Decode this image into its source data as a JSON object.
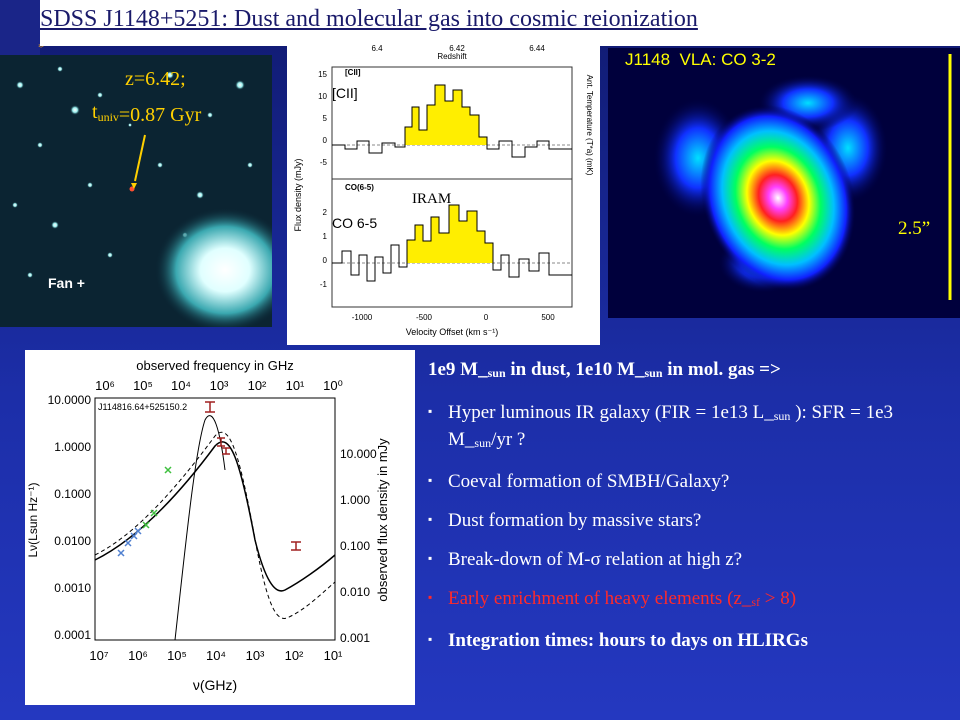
{
  "title": "SDSS J1148+5251: Dust and molecular gas into cosmic reionization",
  "optical_image": {
    "redshift": "z=6.42;",
    "age": [
      "t",
      {
        "sub": "univ"
      },
      "=0.87 Gyr"
    ],
    "credit": "Fan +"
  },
  "spectra": {
    "top_axis_label": "Redshift",
    "top_ticks": [
      "6.4",
      "6.42",
      "6.44"
    ],
    "top_tag": "[CII]",
    "top_label": "[CII]",
    "top_y_ticks": [
      "15",
      "10",
      "5",
      "0",
      "-5"
    ],
    "bottom_tag": "CO(6-5)",
    "telescope": "IRAM",
    "bottom_label": "CO 6-5",
    "bottom_y_ticks": [
      "2",
      "1",
      "0",
      "-1"
    ],
    "y_label": "Flux density (mJy)",
    "right_label": "Ant. Temperature (T*a) (mK)",
    "x_ticks": [
      "-1000",
      "-500",
      "0",
      "500"
    ],
    "x_label": "Velocity Offset (km s⁻¹)"
  },
  "co_map": {
    "label": "J1148  VLA: CO 3-2",
    "scale": "2.5”"
  },
  "sed": {
    "top_axis_label": "observed frequency in GHz",
    "top_ticks": [
      "10⁶",
      "10⁵",
      "10⁴",
      "10³",
      "10²",
      "10¹",
      "10⁰"
    ],
    "left_ticks": [
      "10.0000",
      "1.0000",
      "0.1000",
      "0.0100",
      "0.0010",
      "0.0001"
    ],
    "right_ticks": [
      "10.000",
      "1.000",
      "0.100",
      "0.010",
      "0.001"
    ],
    "bottom_ticks": [
      "10⁷",
      "10⁶",
      "10⁵",
      "10⁴",
      "10³",
      "10²",
      "10¹"
    ],
    "x_label": "ν(GHz)",
    "y_label": "Lν(Lsun Hz⁻¹)",
    "right_label": "observed flux density in mJy",
    "source": "J114816.64+525150.2"
  },
  "bullets": {
    "heading": [
      "1e9 M_",
      {
        "sub": "sun"
      },
      " in dust, 1e10 M_",
      {
        "sub": "sun"
      },
      " in mol. gas =>"
    ],
    "items": [
      {
        "text": [
          "Hyper luminous IR galaxy (FIR = 1e13 L_",
          {
            "sub": "sun"
          },
          " ): SFR  = 1e3 M_",
          {
            "sub": "sun"
          },
          "/yr ?"
        ]
      },
      {
        "text": [
          "Coeval formation of SMBH/Galaxy?"
        ]
      },
      {
        "text": [
          "Dust formation by massive stars?"
        ]
      },
      {
        "text": [
          "Break-down of  M-σ relation at high z?"
        ]
      },
      {
        "text": [
          "Early enrichment of heavy elements (z_",
          {
            "sub": "sf"
          },
          " > 8)"
        ],
        "color": "#ff2a2a"
      },
      {
        "text": [
          "Integration times: hours to days on HLIRGs"
        ],
        "bold": true
      }
    ]
  }
}
